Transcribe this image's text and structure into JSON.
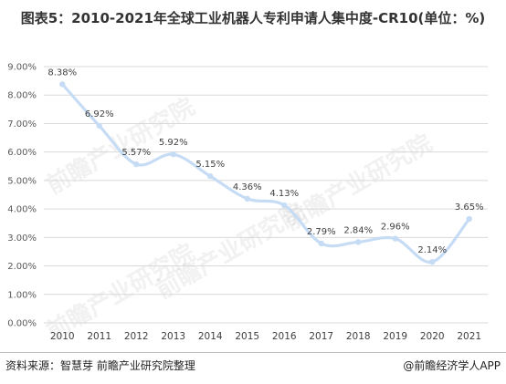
{
  "title": "图表5：2010-2021年全球工业机器人专利申请人集中度-CR10(单位：%)",
  "footer": {
    "source": "资料来源：智慧芽 前瞻产业研究院整理",
    "brand": "@前瞻经济学人APP"
  },
  "watermark": "前瞻产业研究院",
  "colors": {
    "line": "#c6dcf5",
    "grid": "#d9d9d9"
  },
  "chart_data": {
    "type": "line",
    "categories": [
      "2010",
      "2011",
      "2012",
      "2013",
      "2014",
      "2015",
      "2016",
      "2017",
      "2018",
      "2019",
      "2020",
      "2021"
    ],
    "values": [
      8.38,
      6.92,
      5.57,
      5.92,
      5.15,
      4.36,
      4.13,
      2.79,
      2.84,
      2.96,
      2.14,
      3.65
    ],
    "data_labels": [
      "8.38%",
      "6.92%",
      "5.57%",
      "5.92%",
      "5.15%",
      "4.36%",
      "4.13%",
      "2.79%",
      "2.84%",
      "2.96%",
      "2.14%",
      "3.65%"
    ],
    "y_ticks": [
      "0.00%",
      "1.00%",
      "2.00%",
      "3.00%",
      "4.00%",
      "5.00%",
      "6.00%",
      "7.00%",
      "8.00%",
      "9.00%"
    ],
    "ylim": [
      0,
      9
    ],
    "grid": true,
    "smooth": true
  }
}
